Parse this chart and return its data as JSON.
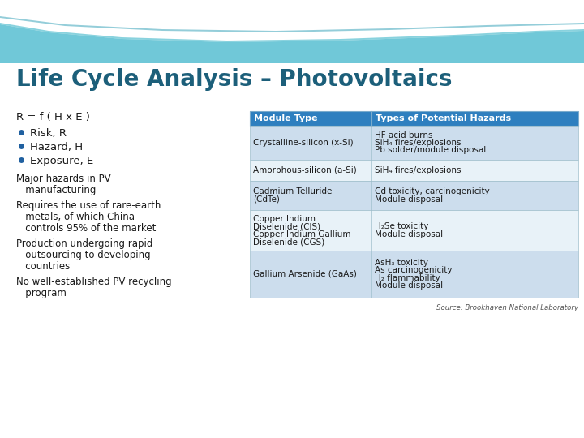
{
  "title": "Life Cycle Analysis – Photovoltaics",
  "title_color": "#1c5f7a",
  "bg_color": "#ffffff",
  "header_bg": "#2e7fbf",
  "header_text_color": "#ffffff",
  "row_bg_odd": "#ccdded",
  "row_bg_even": "#e8f2f8",
  "left_text_color": "#1a1a1a",
  "bullet_color": "#2060a0",
  "formula": "R = f ( H x E )",
  "bullets": [
    "Risk, R",
    "Hazard, H",
    "Exposure, E"
  ],
  "para_lines": [
    "Major hazards in PV",
    "   manufacturing",
    "Requires the use of rare-earth",
    "   metals, of which China",
    "   controls 95% of the market",
    "Production undergoing rapid",
    "   outsourcing to developing",
    "   countries",
    "No well-established PV recycling",
    "   program"
  ],
  "table_headers": [
    "Module Type",
    "Types of Potential Hazards"
  ],
  "table_rows": [
    [
      "Crystalline-silicon (x-Si)",
      "HF acid burns\nSiH₄ fires/explosions\nPb solder/module disposal"
    ],
    [
      "Amorphous-silicon (a-Si)",
      "SiH₄ fires/explosions"
    ],
    [
      "Cadmium Telluride\n(CdTe)",
      "Cd toxicity, carcinogenicity\nModule disposal"
    ],
    [
      "Copper Indium\nDiselenide (CIS)\nCopper Indium Gallium\nDiselenide (CGS)",
      "H₂Se toxicity\nModule disposal"
    ],
    [
      "Gallium Arsenide (GaAs)",
      "AsH₃ toxicity\nAs carcinogenicity\nH₂ flammability\nModule disposal"
    ]
  ],
  "source_text": "Source: Brookhaven National Laboratory",
  "title_fontsize": 20,
  "body_fontsize": 8.5,
  "table_header_fontsize": 8.0,
  "table_body_fontsize": 7.5
}
